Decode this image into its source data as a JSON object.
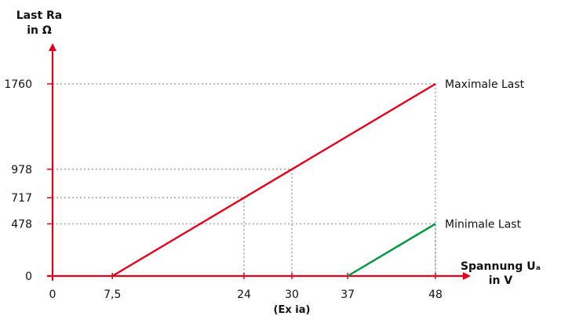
{
  "chart_data": {
    "type": "line",
    "y_title": [
      "Last Ra",
      "in Ω"
    ],
    "x_title": [
      "Spannung Uₐ",
      "in V"
    ],
    "x_ticks": [
      {
        "value": 0,
        "label": "0"
      },
      {
        "value": 7.5,
        "label": "7,5"
      },
      {
        "value": 24,
        "label": "24"
      },
      {
        "value": 30,
        "label": "30"
      },
      {
        "value": 37,
        "label": "37"
      },
      {
        "value": 48,
        "label": "48"
      }
    ],
    "x_sublabel": {
      "value": 30,
      "label": "(Ex ia)"
    },
    "y_ticks": [
      {
        "value": 0,
        "label": "0"
      },
      {
        "value": 478,
        "label": "478"
      },
      {
        "value": 717,
        "label": "717"
      },
      {
        "value": 978,
        "label": "978"
      },
      {
        "value": 1760,
        "label": "1760"
      }
    ],
    "xlim": [
      0,
      48
    ],
    "ylim": [
      0,
      1760
    ],
    "series": [
      {
        "name": "Maximale Last",
        "color": "#e2001a",
        "x": [
          7.5,
          48
        ],
        "y": [
          0,
          1760
        ]
      },
      {
        "name": "Minimale Last",
        "color": "#009640",
        "x": [
          37,
          48
        ],
        "y": [
          0,
          478
        ]
      }
    ],
    "guides": [
      {
        "x": 24,
        "y": 717
      },
      {
        "x": 30,
        "y": 978
      },
      {
        "x": 48,
        "y": 478
      },
      {
        "x": 48,
        "y": 1760
      }
    ],
    "grid": false,
    "axis_color": "#e2001a",
    "guide_color": "#aaaaaa"
  }
}
